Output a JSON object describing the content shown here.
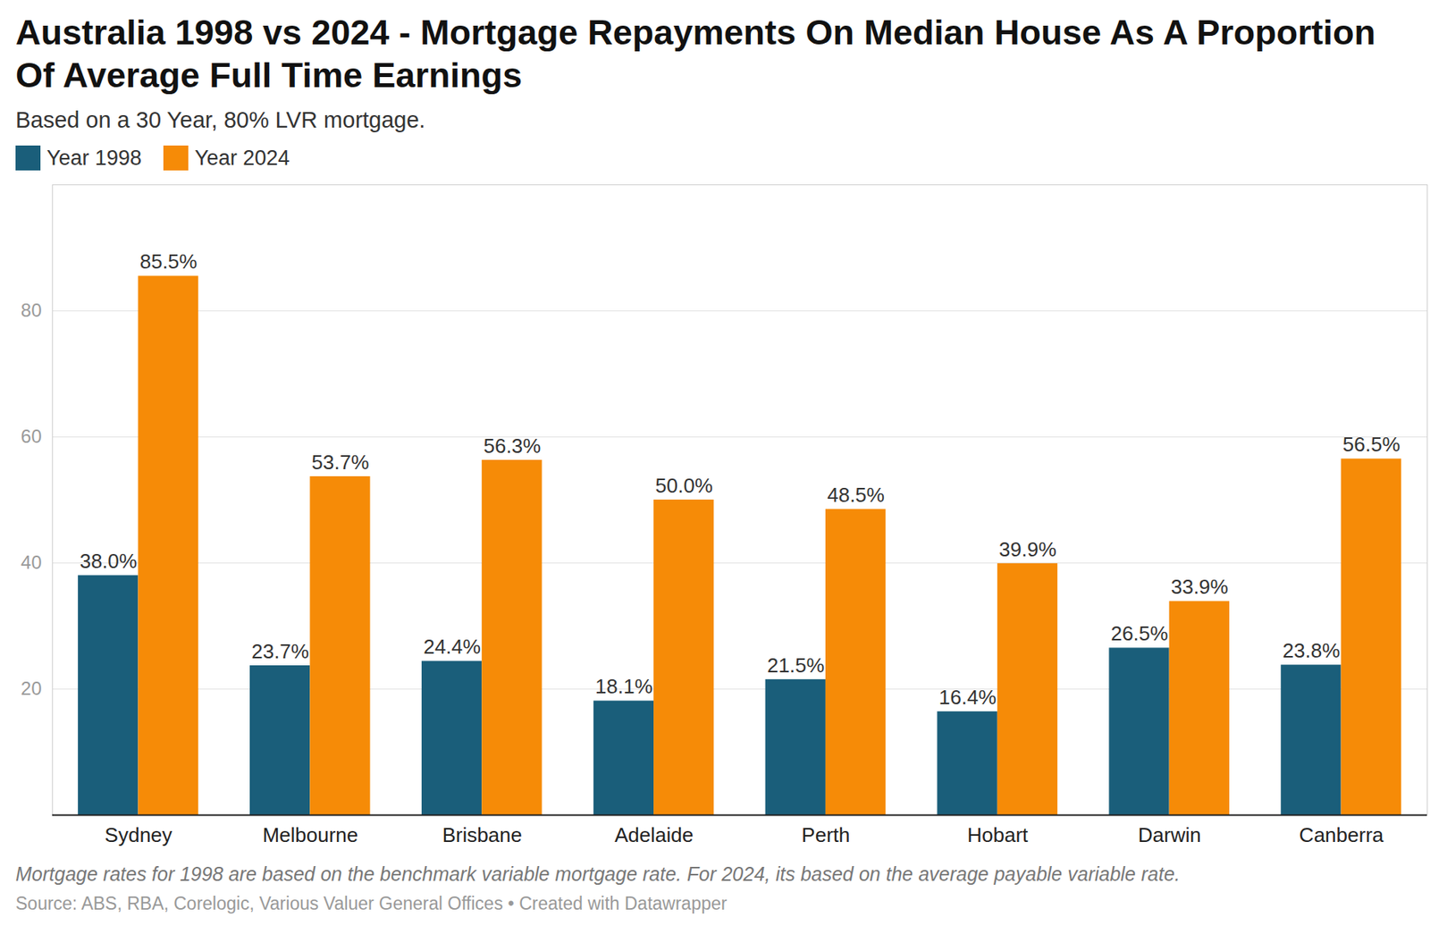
{
  "chart_data": {
    "type": "bar",
    "title": "Australia 1998 vs 2024 - Mortgage Repayments On Median House As A Proportion Of Average Full Time Earnings",
    "subtitle": "Based on a 30 Year, 80% LVR mortgage.",
    "caption": "Mortgage rates for 1998 are based on the benchmark variable mortgage rate. For 2024, its based on the average payable variable rate.",
    "source": "Source: ABS, RBA, Corelogic, Various Valuer General Offices • Created with Datawrapper",
    "categories": [
      "Sydney",
      "Melbourne",
      "Brisbane",
      "Adelaide",
      "Perth",
      "Hobart",
      "Darwin",
      "Canberra"
    ],
    "series": [
      {
        "name": "Year 1998",
        "color": "#1a5e7a",
        "values": [
          38.0,
          23.7,
          24.4,
          18.1,
          21.5,
          16.4,
          26.5,
          23.8
        ],
        "value_labels": [
          "38.0%",
          "23.7%",
          "24.4%",
          "18.1%",
          "21.5%",
          "16.4%",
          "26.5%",
          "23.8%"
        ]
      },
      {
        "name": "Year 2024",
        "color": "#f68b07",
        "values": [
          85.5,
          53.7,
          56.3,
          50.0,
          48.5,
          39.9,
          33.9,
          56.5
        ],
        "value_labels": [
          "85.5%",
          "53.7%",
          "56.3%",
          "50.0%",
          "48.5%",
          "39.9%",
          "33.9%",
          "56.5%"
        ]
      }
    ],
    "ylim": [
      0,
      100
    ],
    "yticks": [
      20,
      40,
      60,
      80
    ],
    "grid": true,
    "legend": "top-left",
    "data_labels": true
  }
}
